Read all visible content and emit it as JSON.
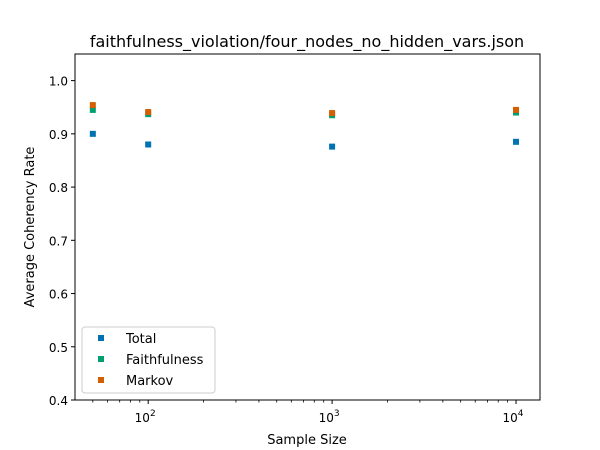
{
  "chart_data": {
    "type": "scatter",
    "title": "faithfulness_violation/four_nodes_no_hidden_vars.json",
    "xlabel": "Sample Size",
    "ylabel": "Average Coherency Rate",
    "xscale": "log",
    "xlim": [
      40,
      13500
    ],
    "ylim": [
      0.4,
      1.05
    ],
    "x_ticks": [
      {
        "value": 100,
        "base": "10",
        "exp": "2"
      },
      {
        "value": 1000,
        "base": "10",
        "exp": "3"
      },
      {
        "value": 10000,
        "base": "10",
        "exp": "4"
      }
    ],
    "y_ticks": [
      {
        "value": 0.4,
        "label": "0.4"
      },
      {
        "value": 0.5,
        "label": "0.5"
      },
      {
        "value": 0.6,
        "label": "0.6"
      },
      {
        "value": 0.7,
        "label": "0.7"
      },
      {
        "value": 0.8,
        "label": "0.8"
      },
      {
        "value": 0.9,
        "label": "0.9"
      },
      {
        "value": 1.0,
        "label": "1.0"
      }
    ],
    "grid": false,
    "legend_position": "lower-left",
    "x": [
      50,
      100,
      1000,
      10000
    ],
    "series": [
      {
        "name": "Total",
        "color": "#0072B2",
        "values": [
          0.9,
          0.88,
          0.876,
          0.885
        ]
      },
      {
        "name": "Faithfulness",
        "color": "#009E73",
        "values": [
          0.945,
          0.937,
          0.935,
          0.94
        ]
      },
      {
        "name": "Markov",
        "color": "#D55E00",
        "values": [
          0.954,
          0.941,
          0.939,
          0.945
        ]
      }
    ]
  }
}
